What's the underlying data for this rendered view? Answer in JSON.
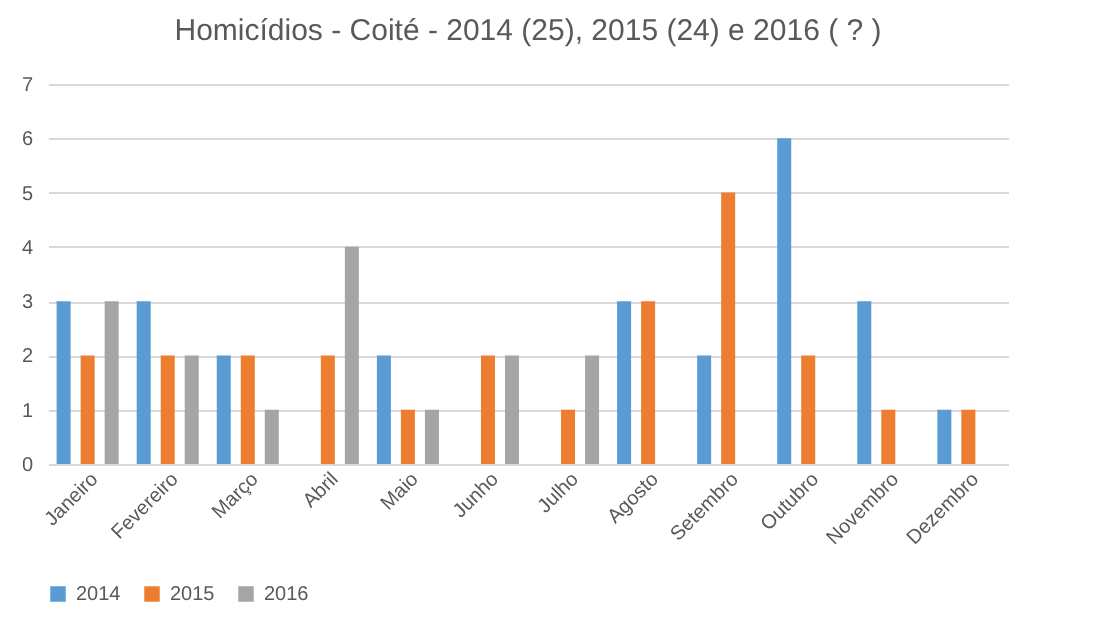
{
  "chart_data": {
    "type": "bar",
    "title": "Homicídios - Coité - 2014 (25), 2015 (24) e 2016 (  ?  )",
    "categories": [
      "Janeiro",
      "Fevereiro",
      "Março",
      "Abril",
      "Maio",
      "Junho",
      "Julho",
      "Agosto",
      "Setembro",
      "Outubro",
      "Novembro",
      "Dezembro"
    ],
    "series": [
      {
        "name": "2014",
        "color": "#5b9bd5",
        "values": [
          3,
          3,
          2,
          null,
          2,
          null,
          null,
          3,
          2,
          6,
          3,
          1
        ]
      },
      {
        "name": "2015",
        "color": "#ed7d31",
        "values": [
          2,
          2,
          2,
          2,
          1,
          2,
          1,
          3,
          5,
          2,
          1,
          1
        ]
      },
      {
        "name": "2016",
        "color": "#a5a5a5",
        "values": [
          3,
          2,
          1,
          4,
          1,
          2,
          2,
          null,
          null,
          null,
          null,
          null
        ]
      }
    ],
    "ylim": [
      0,
      7
    ],
    "yticks": [
      0,
      1,
      2,
      3,
      4,
      5,
      6,
      7
    ],
    "grid": "y",
    "legend": "bottom"
  }
}
